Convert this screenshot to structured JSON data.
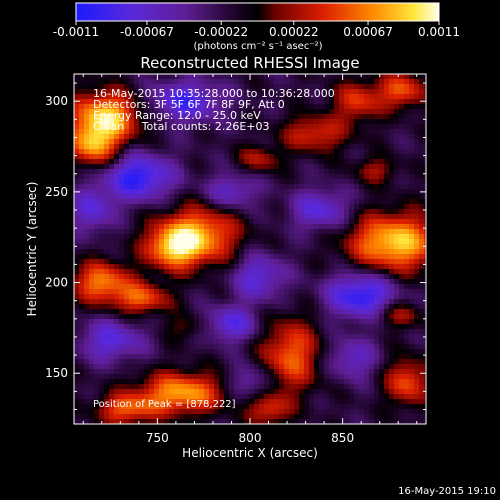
{
  "chart_data": {
    "type": "heatmap",
    "title": "Reconstructed RHESSI Image",
    "xlabel": "Heliocentric X (arcsec)",
    "ylabel": "Heliocentric Y (arcsec)",
    "xlim": [
      705,
      895
    ],
    "ylim": [
      122,
      315
    ],
    "xticks": [
      750,
      800,
      850
    ],
    "xtick_labels": [
      "750",
      "800",
      "850"
    ],
    "yticks": [
      150,
      200,
      250,
      300
    ],
    "ytick_labels": [
      "150",
      "200",
      "250",
      "300"
    ],
    "colorbar": {
      "range": [
        -0.0011,
        0.0011
      ],
      "ticks": [
        -0.0011,
        -0.00067,
        -0.00022,
        0.00022,
        0.00067,
        0.0011
      ],
      "tick_labels": [
        "-0.0011",
        "-0.00067",
        "-0.00022",
        "0.00022",
        "0.00067",
        "0.0011"
      ],
      "units_label": "(photons cm⁻² s⁻¹ asec⁻²)",
      "colors": [
        "#1a1aff",
        "#6b2fd1",
        "#5a1f8c",
        "#000000",
        "#9a0000",
        "#ff3300",
        "#ff9900",
        "#ffffe6"
      ]
    },
    "annotations": [
      "16-May-2015 10:35:28.000 to 10:36:28.000",
      "Detectors: 3F 5F 6F 7F 8F 9F, Att 0",
      "Energy Range: 12.0 - 25.0 keV",
      "Clean     Total counts: 2.26E+03"
    ],
    "peak_label": "Position of Peak = [878,222]",
    "sources": [
      {
        "x": 722,
        "y": 291,
        "value": 0.0011,
        "sx": 13,
        "sy": 10
      },
      {
        "x": 715,
        "y": 275,
        "value": 0.0008,
        "sx": 9,
        "sy": 8
      },
      {
        "x": 772,
        "y": 226,
        "value": 0.00095,
        "sx": 15,
        "sy": 11
      },
      {
        "x": 758,
        "y": 219,
        "value": 0.0008,
        "sx": 10,
        "sy": 8
      },
      {
        "x": 878,
        "y": 222,
        "value": 0.0011,
        "sx": 17,
        "sy": 11
      },
      {
        "x": 720,
        "y": 200,
        "value": 0.00085,
        "sx": 11,
        "sy": 8
      },
      {
        "x": 742,
        "y": 191,
        "value": 0.0007,
        "sx": 10,
        "sy": 6
      },
      {
        "x": 763,
        "y": 139,
        "value": 0.00095,
        "sx": 16,
        "sy": 8
      },
      {
        "x": 733,
        "y": 130,
        "value": 0.0007,
        "sx": 11,
        "sy": 6
      },
      {
        "x": 822,
        "y": 160,
        "value": 0.00075,
        "sx": 11,
        "sy": 14
      },
      {
        "x": 810,
        "y": 130,
        "value": 0.0006,
        "sx": 8,
        "sy": 6
      },
      {
        "x": 885,
        "y": 145,
        "value": 0.0007,
        "sx": 8,
        "sy": 9
      },
      {
        "x": 858,
        "y": 300,
        "value": 0.0006,
        "sx": 9,
        "sy": 8
      },
      {
        "x": 882,
        "y": 306,
        "value": 0.0007,
        "sx": 9,
        "sy": 7
      },
      {
        "x": 835,
        "y": 282,
        "value": 0.0006,
        "sx": 12,
        "sy": 7
      },
      {
        "x": 805,
        "y": 268,
        "value": 0.00045,
        "sx": 8,
        "sy": 5
      },
      {
        "x": 868,
        "y": 262,
        "value": 0.0004,
        "sx": 8,
        "sy": 5
      },
      {
        "x": 880,
        "y": 182,
        "value": 0.00045,
        "sx": 9,
        "sy": 5
      },
      {
        "x": 765,
        "y": 175,
        "value": 0.0003,
        "sx": 7,
        "sy": 5
      },
      {
        "x": 740,
        "y": 258,
        "value": -0.00085,
        "sx": 13,
        "sy": 9
      },
      {
        "x": 765,
        "y": 300,
        "value": -0.0007,
        "sx": 14,
        "sy": 8
      },
      {
        "x": 860,
        "y": 193,
        "value": -0.00085,
        "sx": 13,
        "sy": 9
      },
      {
        "x": 805,
        "y": 203,
        "value": -0.0006,
        "sx": 10,
        "sy": 9
      },
      {
        "x": 838,
        "y": 240,
        "value": -0.0006,
        "sx": 11,
        "sy": 8
      },
      {
        "x": 790,
        "y": 177,
        "value": -0.0006,
        "sx": 10,
        "sy": 7
      },
      {
        "x": 790,
        "y": 250,
        "value": -0.0005,
        "sx": 10,
        "sy": 7
      },
      {
        "x": 715,
        "y": 240,
        "value": -0.00055,
        "sx": 8,
        "sy": 9
      },
      {
        "x": 725,
        "y": 168,
        "value": -0.0006,
        "sx": 12,
        "sy": 8
      },
      {
        "x": 855,
        "y": 158,
        "value": -0.0005,
        "sx": 9,
        "sy": 8
      },
      {
        "x": 800,
        "y": 145,
        "value": -0.00045,
        "sx": 8,
        "sy": 7
      }
    ]
  },
  "timestamp": "16-May-2015 19:10"
}
